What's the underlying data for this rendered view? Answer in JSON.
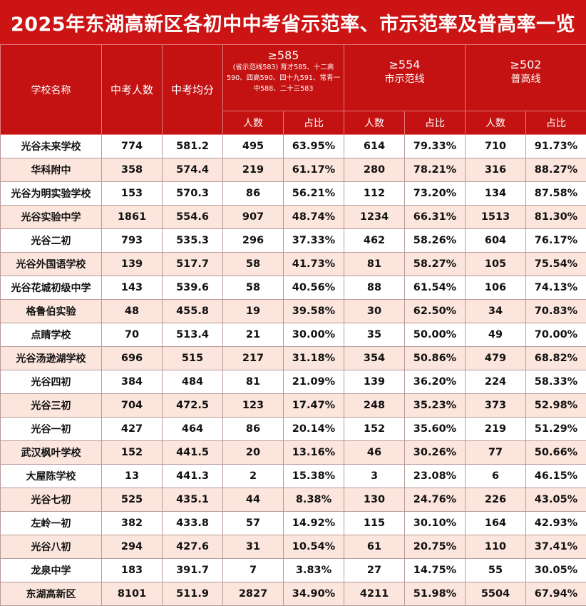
{
  "title": "2025年东湖高新区各初中中考省示范率、市示范率及普高率一览",
  "header": {
    "school": "学校名称",
    "count": "中考人数",
    "avg": "中考均分",
    "line585": "≥585",
    "line585_note": "(省示范线583) 育才585、十二高590、四高590、四十九591、常青一中588、二十三583",
    "line554": "≥554",
    "line554_desc": "市示范线",
    "line502": "≥502",
    "line502_desc": "普高线",
    "people": "人数",
    "ratio": "占比"
  },
  "rows": [
    [
      "光谷未来学校",
      "774",
      "581.2",
      "495",
      "63.95%",
      "614",
      "79.33%",
      "710",
      "91.73%"
    ],
    [
      "华科附中",
      "358",
      "574.4",
      "219",
      "61.17%",
      "280",
      "78.21%",
      "316",
      "88.27%"
    ],
    [
      "光谷为明实验学校",
      "153",
      "570.3",
      "86",
      "56.21%",
      "112",
      "73.20%",
      "134",
      "87.58%"
    ],
    [
      "光谷实验中学",
      "1861",
      "554.6",
      "907",
      "48.74%",
      "1234",
      "66.31%",
      "1513",
      "81.30%"
    ],
    [
      "光谷二初",
      "793",
      "535.3",
      "296",
      "37.33%",
      "462",
      "58.26%",
      "604",
      "76.17%"
    ],
    [
      "光谷外国语学校",
      "139",
      "517.7",
      "58",
      "41.73%",
      "81",
      "58.27%",
      "105",
      "75.54%"
    ],
    [
      "光谷花城初级中学",
      "143",
      "539.6",
      "58",
      "40.56%",
      "88",
      "61.54%",
      "106",
      "74.13%"
    ],
    [
      "格鲁伯实验",
      "48",
      "455.8",
      "19",
      "39.58%",
      "30",
      "62.50%",
      "34",
      "70.83%"
    ],
    [
      "点睛学校",
      "70",
      "513.4",
      "21",
      "30.00%",
      "35",
      "50.00%",
      "49",
      "70.00%"
    ],
    [
      "光谷汤逊湖学校",
      "696",
      "515",
      "217",
      "31.18%",
      "354",
      "50.86%",
      "479",
      "68.82%"
    ],
    [
      "光谷四初",
      "384",
      "484",
      "81",
      "21.09%",
      "139",
      "36.20%",
      "224",
      "58.33%"
    ],
    [
      "光谷三初",
      "704",
      "472.5",
      "123",
      "17.47%",
      "248",
      "35.23%",
      "373",
      "52.98%"
    ],
    [
      "光谷一初",
      "427",
      "464",
      "86",
      "20.14%",
      "152",
      "35.60%",
      "219",
      "51.29%"
    ],
    [
      "武汉枫叶学校",
      "152",
      "441.5",
      "20",
      "13.16%",
      "46",
      "30.26%",
      "77",
      "50.66%"
    ],
    [
      "大屋陈学校",
      "13",
      "441.3",
      "2",
      "15.38%",
      "3",
      "23.08%",
      "6",
      "46.15%"
    ],
    [
      "光谷七初",
      "525",
      "435.1",
      "44",
      "8.38%",
      "130",
      "24.76%",
      "226",
      "43.05%"
    ],
    [
      "左岭一初",
      "382",
      "433.8",
      "57",
      "14.92%",
      "115",
      "30.10%",
      "164",
      "42.93%"
    ],
    [
      "光谷八初",
      "294",
      "427.6",
      "31",
      "10.54%",
      "61",
      "20.75%",
      "110",
      "37.41%"
    ],
    [
      "龙泉中学",
      "183",
      "391.7",
      "7",
      "3.83%",
      "27",
      "14.75%",
      "55",
      "30.05%"
    ],
    [
      "东湖高新区",
      "8101",
      "511.9",
      "2827",
      "34.90%",
      "4211",
      "51.98%",
      "5504",
      "67.94%"
    ]
  ],
  "colors": {
    "header_red": "#c41212",
    "title_red": "#cc1414",
    "stripe": "#fbe5dc"
  }
}
